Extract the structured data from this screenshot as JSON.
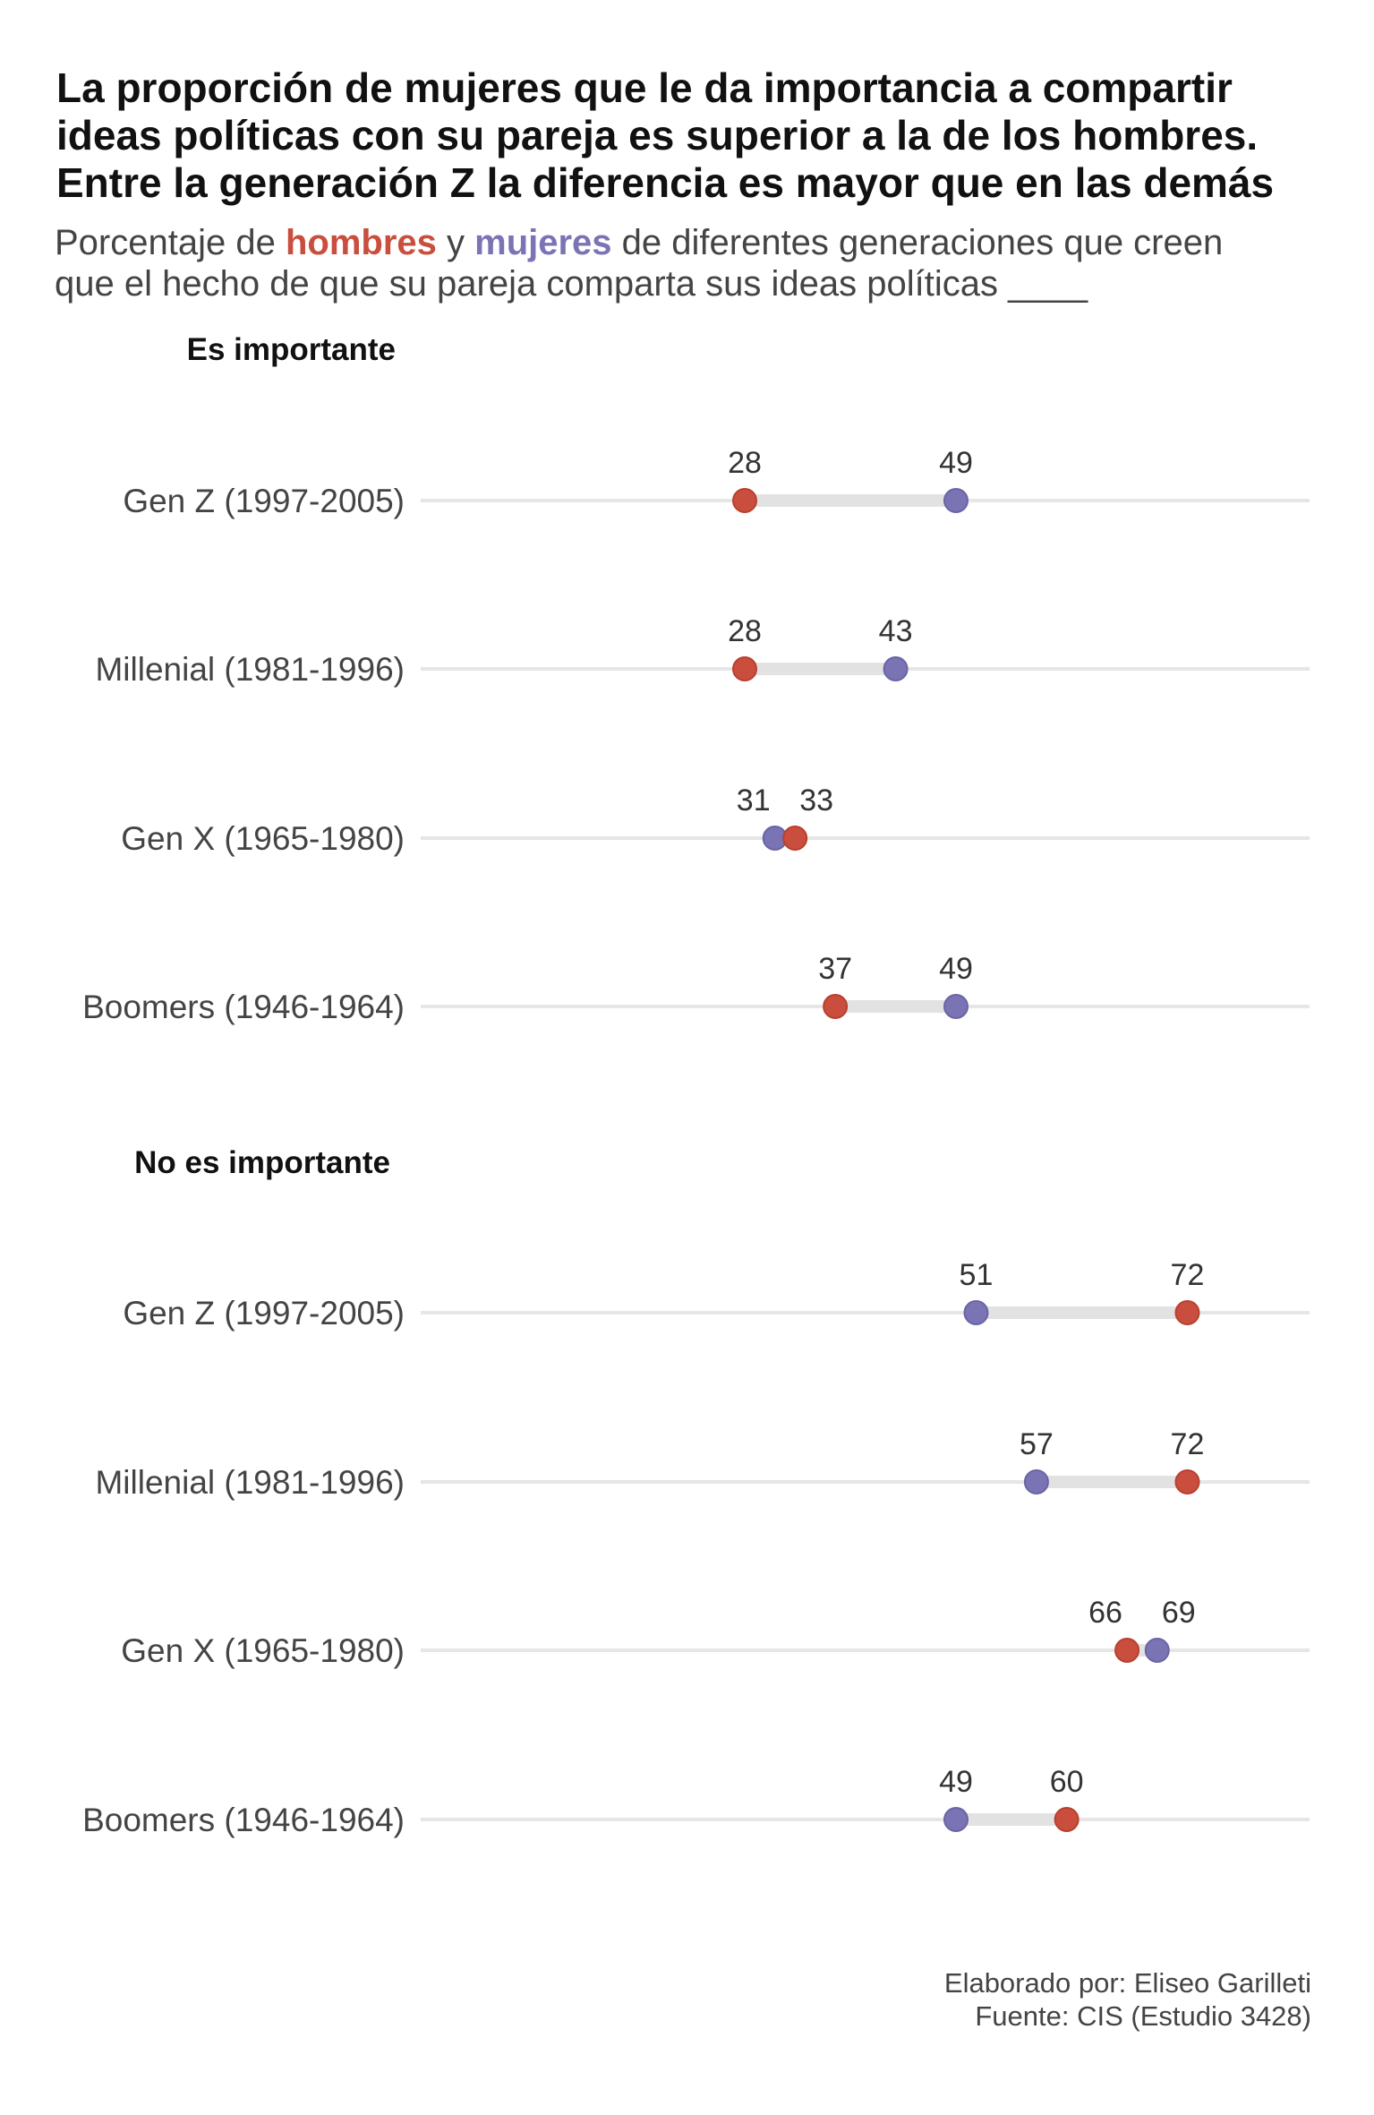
{
  "title_lines": [
    "La proporción de mujeres que le da importancia a compartir",
    "ideas políticas con su pareja es superior a la de los hombres.",
    "Entre la generación Z la diferencia es mayor que en las demás"
  ],
  "subtitle": {
    "part1": "Porcentaje de ",
    "hombres": "hombres",
    "part2": " y ",
    "mujeres": "mujeres",
    "part3": " de diferentes generaciones que creen",
    "line2": "que el hecho de que su pareja comparta sus ideas políticas ____"
  },
  "colors": {
    "hombres": "#c94e3e",
    "mujeres": "#7a74b4",
    "segment": "#e2e2e2",
    "gridline": "#e6e6e6"
  },
  "chart_data": {
    "type": "dumbbell",
    "xlim": [
      0,
      100
    ],
    "series": [
      {
        "name": "hombres",
        "color": "#c94e3e"
      },
      {
        "name": "mujeres",
        "color": "#7a74b4"
      }
    ],
    "panels": [
      {
        "title": "Es importante",
        "rows": [
          {
            "label": "Gen Z (1997-2005)",
            "hombres": 28,
            "mujeres": 49
          },
          {
            "label": "Millenial (1981-1996)",
            "hombres": 28,
            "mujeres": 43
          },
          {
            "label": "Gen X (1965-1980)",
            "hombres": 33,
            "mujeres": 31
          },
          {
            "label": "Boomers (1946-1964)",
            "hombres": 37,
            "mujeres": 49
          }
        ]
      },
      {
        "title": "No es importante",
        "rows": [
          {
            "label": "Gen Z (1997-2005)",
            "hombres": 72,
            "mujeres": 51
          },
          {
            "label": "Millenial (1981-1996)",
            "hombres": 72,
            "mujeres": 57
          },
          {
            "label": "Gen X (1965-1980)",
            "hombres": 66,
            "mujeres": 69
          },
          {
            "label": "Boomers (1946-1964)",
            "hombres": 60,
            "mujeres": 49
          }
        ]
      }
    ]
  },
  "caption": {
    "line1": "Elaborado por: Eliseo Garilleti",
    "line2": "Fuente: CIS (Estudio 3428)"
  }
}
